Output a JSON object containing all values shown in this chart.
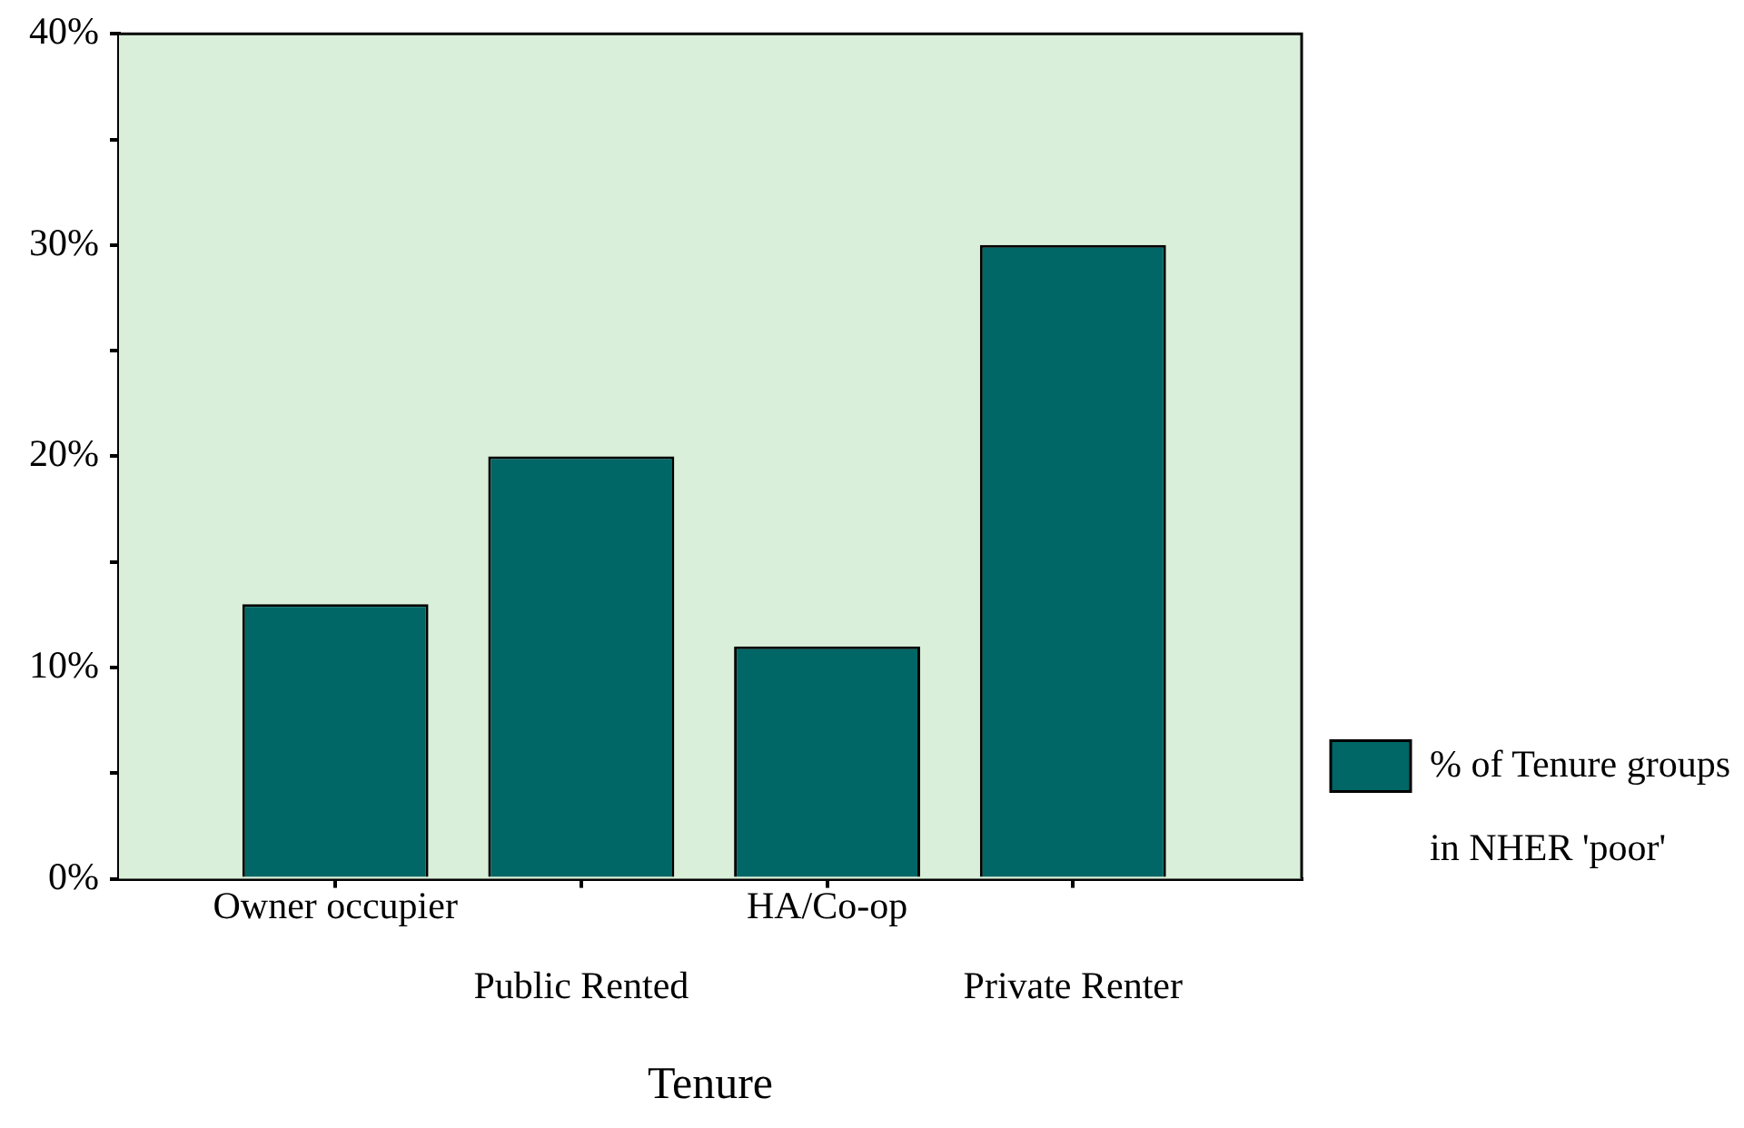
{
  "chart_data": {
    "type": "bar",
    "xlabel": "Tenure",
    "categories": [
      "Owner occupier",
      "Public Rented",
      "HA/Co-op",
      "Private Renter"
    ],
    "series": [
      {
        "name": "% of Tenure groups in NHER 'poor'",
        "color": "#006666",
        "values": [
          13,
          20,
          11,
          30
        ]
      }
    ],
    "ylim": [
      0,
      40
    ],
    "yticks": [
      {
        "value": 0,
        "label": "0%"
      },
      {
        "value": 5,
        "label": null
      },
      {
        "value": 10,
        "label": "10%"
      },
      {
        "value": 15,
        "label": null
      },
      {
        "value": 20,
        "label": "20%"
      },
      {
        "value": 25,
        "label": null
      },
      {
        "value": 30,
        "label": "30%"
      },
      {
        "value": 35,
        "label": null
      },
      {
        "value": 40,
        "label": "40%"
      }
    ],
    "grid": false,
    "legend": "right"
  }
}
